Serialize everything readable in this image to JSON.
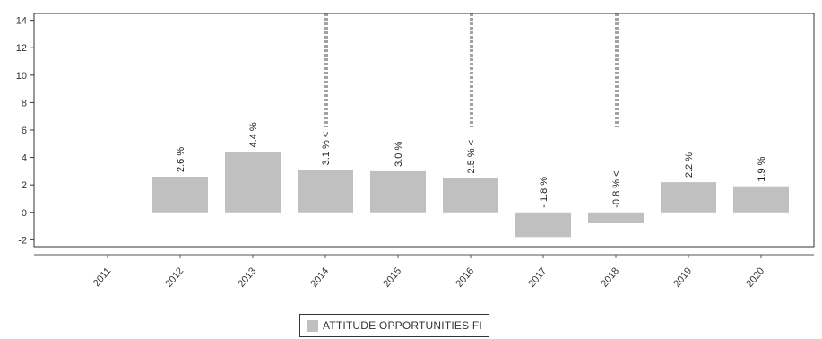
{
  "chart_data": {
    "type": "bar",
    "categories": [
      "2011",
      "2012",
      "2013",
      "2014",
      "2015",
      "2016",
      "2017",
      "2018",
      "2019",
      "2020"
    ],
    "series": [
      {
        "name": "ATTITUDE OPPORTUNITIES FI",
        "values": [
          null,
          2.6,
          4.4,
          3.1,
          3.0,
          2.5,
          -1.8,
          -0.8,
          2.2,
          1.9
        ],
        "labels": [
          "",
          "2.6 %",
          "4.4 %",
          "3.1 % <",
          "3.0 %",
          "2.5 % <",
          "- 1.8 %",
          "-0.8 % <",
          "2.2 %",
          "1.9 %"
        ],
        "color": "#c0c0c0"
      }
    ],
    "marker_years": [
      "2014",
      "2016",
      "2018"
    ],
    "ylim": [
      -2.5,
      14.5
    ],
    "yticks": [
      -2,
      0,
      2,
      4,
      6,
      8,
      10,
      12,
      14
    ],
    "ytick_labels": [
      "-2",
      "0",
      "2",
      "4",
      "6",
      "8",
      "10",
      "12",
      "14"
    ],
    "xlabel": "",
    "ylabel": "",
    "title": "",
    "legend_position": "bottom",
    "grid": false
  },
  "legend": {
    "label": "ATTITUDE OPPORTUNITIES FI",
    "color": "#c0c0c0"
  }
}
